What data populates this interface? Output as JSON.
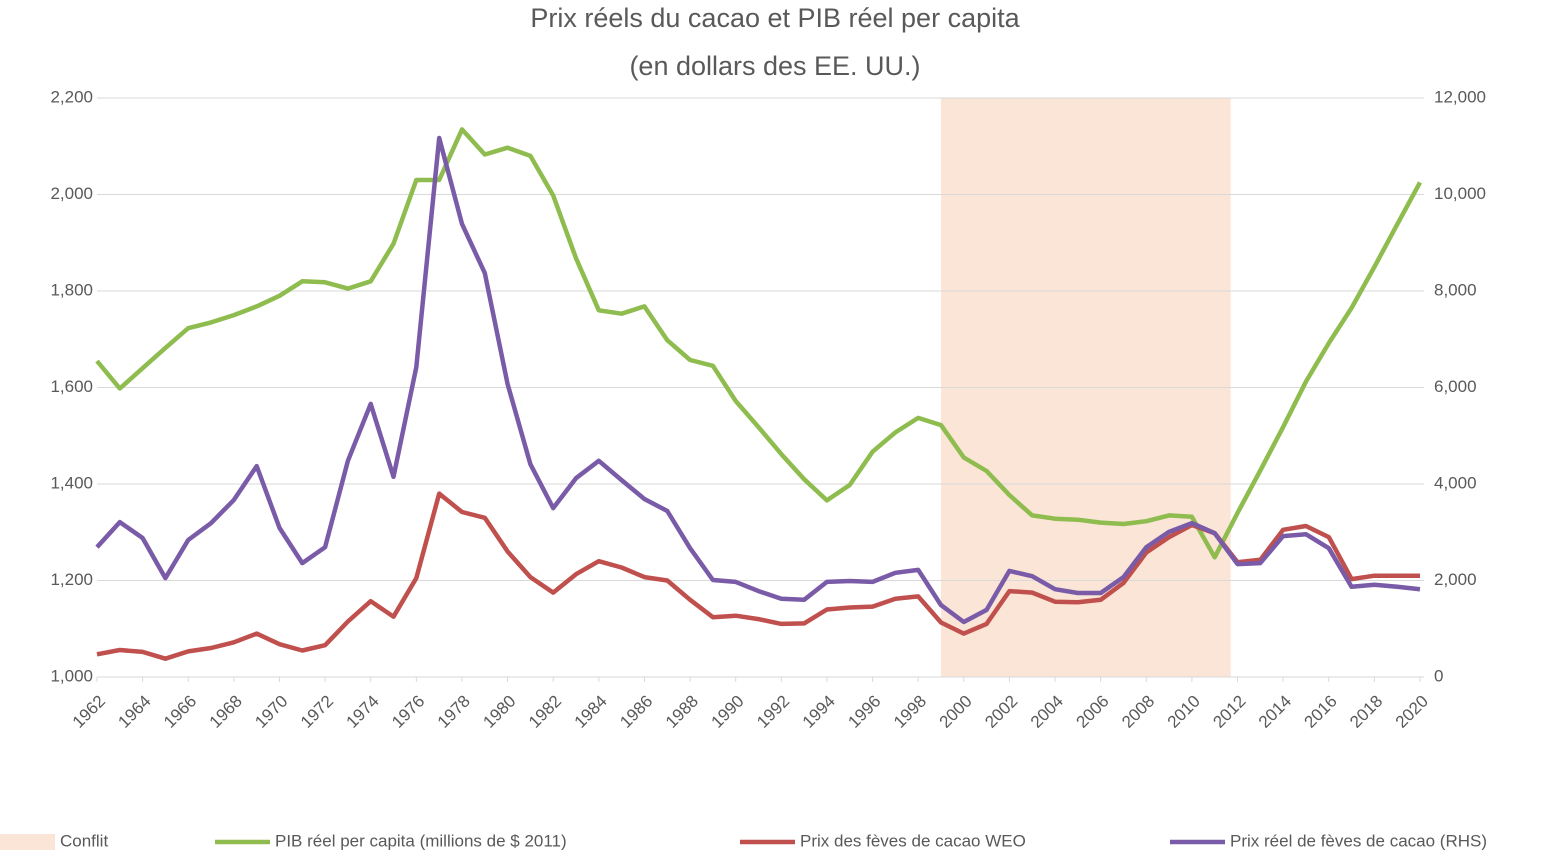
{
  "chart_data": {
    "type": "line",
    "title": "Prix réels du cacao et PIB réel per capita",
    "subtitle": "(en dollars des EE. UU.)",
    "x": [
      1962,
      1963,
      1964,
      1965,
      1966,
      1967,
      1968,
      1969,
      1970,
      1971,
      1972,
      1973,
      1974,
      1975,
      1976,
      1977,
      1978,
      1979,
      1980,
      1981,
      1982,
      1983,
      1984,
      1985,
      1986,
      1987,
      1988,
      1989,
      1990,
      1991,
      1992,
      1993,
      1994,
      1995,
      1996,
      1997,
      1998,
      1999,
      2000,
      2001,
      2002,
      2003,
      2004,
      2005,
      2006,
      2007,
      2008,
      2009,
      2010,
      2011,
      2012,
      2013,
      2014,
      2015,
      2016,
      2017,
      2018,
      2019,
      2020
    ],
    "xlim": [
      1962,
      2020
    ],
    "xticks": [
      1962,
      1964,
      1966,
      1968,
      1970,
      1972,
      1974,
      1976,
      1978,
      1980,
      1982,
      1984,
      1986,
      1988,
      1990,
      1992,
      1994,
      1996,
      1998,
      2000,
      2002,
      2004,
      2006,
      2008,
      2010,
      2012,
      2014,
      2016,
      2018,
      2020
    ],
    "ylim": [
      1000,
      2200
    ],
    "yticks": [
      {
        "value": 1000,
        "label": "1,000"
      },
      {
        "value": 1200,
        "label": "1,200"
      },
      {
        "value": 1400,
        "label": "1,400"
      },
      {
        "value": 1600,
        "label": "1,600"
      },
      {
        "value": 1800,
        "label": "1,800"
      },
      {
        "value": 2000,
        "label": "2,000"
      },
      {
        "value": 2200,
        "label": "2,200"
      }
    ],
    "y2lim": [
      0,
      12000
    ],
    "y2ticks": [
      0,
      {
        "value": 2000,
        "label": "2,000"
      },
      {
        "value": 4000,
        "label": "4,000"
      },
      {
        "value": 6000,
        "label": "6,000"
      },
      {
        "value": 8000,
        "label": "8,000"
      },
      {
        "value": 10000,
        "label": "10,000"
      },
      {
        "value": 12000,
        "label": "12,000"
      }
    ],
    "grid": true,
    "legend": "bottom",
    "conflict": {
      "name": "Conflit",
      "color": "#fbe5d6",
      "start": 1999,
      "end": 2011.7
    },
    "series": [
      {
        "name": "PIB réel per capita (millions de $ 2011)",
        "color": "#8fbc4f",
        "axis": "y",
        "values": [
          1655,
          1598,
          1640,
          1682,
          1723,
          1735,
          1750,
          1768,
          1790,
          1820,
          1818,
          1805,
          1820,
          1898,
          2030,
          2030,
          2135,
          2083,
          2097,
          2080,
          1998,
          1868,
          1760,
          1753,
          1768,
          1698,
          1657,
          1645,
          1572,
          1518,
          1462,
          1410,
          1366,
          1398,
          1467,
          1507,
          1537,
          1522,
          1455,
          1427,
          1377,
          1335,
          1328,
          1326,
          1320,
          1317,
          1323,
          1335,
          1332,
          1248,
          1340,
          1428,
          1518,
          1612,
          1692,
          1765,
          1850,
          1938,
          2025
        ]
      },
      {
        "name": "Prix des fèves de cacao WEO",
        "color": "#c0504d",
        "axis": "y",
        "values": [
          1047,
          1056,
          1052,
          1038,
          1053,
          1060,
          1072,
          1090,
          1068,
          1055,
          1066,
          1115,
          1157,
          1125,
          1205,
          1380,
          1342,
          1330,
          1260,
          1207,
          1175,
          1213,
          1240,
          1227,
          1207,
          1200,
          1160,
          1124,
          1127,
          1120,
          1110,
          1111,
          1140,
          1144,
          1146,
          1162,
          1167,
          1113,
          1090,
          1110,
          1178,
          1175,
          1156,
          1155,
          1160,
          1195,
          1258,
          1290,
          1315,
          1298,
          1238,
          1243,
          1305,
          1313,
          1290,
          1203,
          1210,
          1210,
          1210
        ]
      },
      {
        "name": "Prix réel de fèves de cacao  (RHS)",
        "color": "#7a5ba8",
        "axis": "y2",
        "values": [
          2690,
          3210,
          2880,
          2050,
          2840,
          3190,
          3670,
          4370,
          3090,
          2360,
          2690,
          4480,
          5660,
          4150,
          6420,
          11170,
          9390,
          8370,
          6070,
          4410,
          3500,
          4120,
          4480,
          4080,
          3690,
          3440,
          2670,
          2010,
          1970,
          1780,
          1620,
          1600,
          1970,
          1990,
          1970,
          2160,
          2220,
          1490,
          1140,
          1390,
          2200,
          2090,
          1820,
          1740,
          1740,
          2070,
          2690,
          3010,
          3190,
          2980,
          2340,
          2360,
          2920,
          2960,
          2670,
          1870,
          1910,
          1870,
          1820
        ]
      }
    ]
  }
}
